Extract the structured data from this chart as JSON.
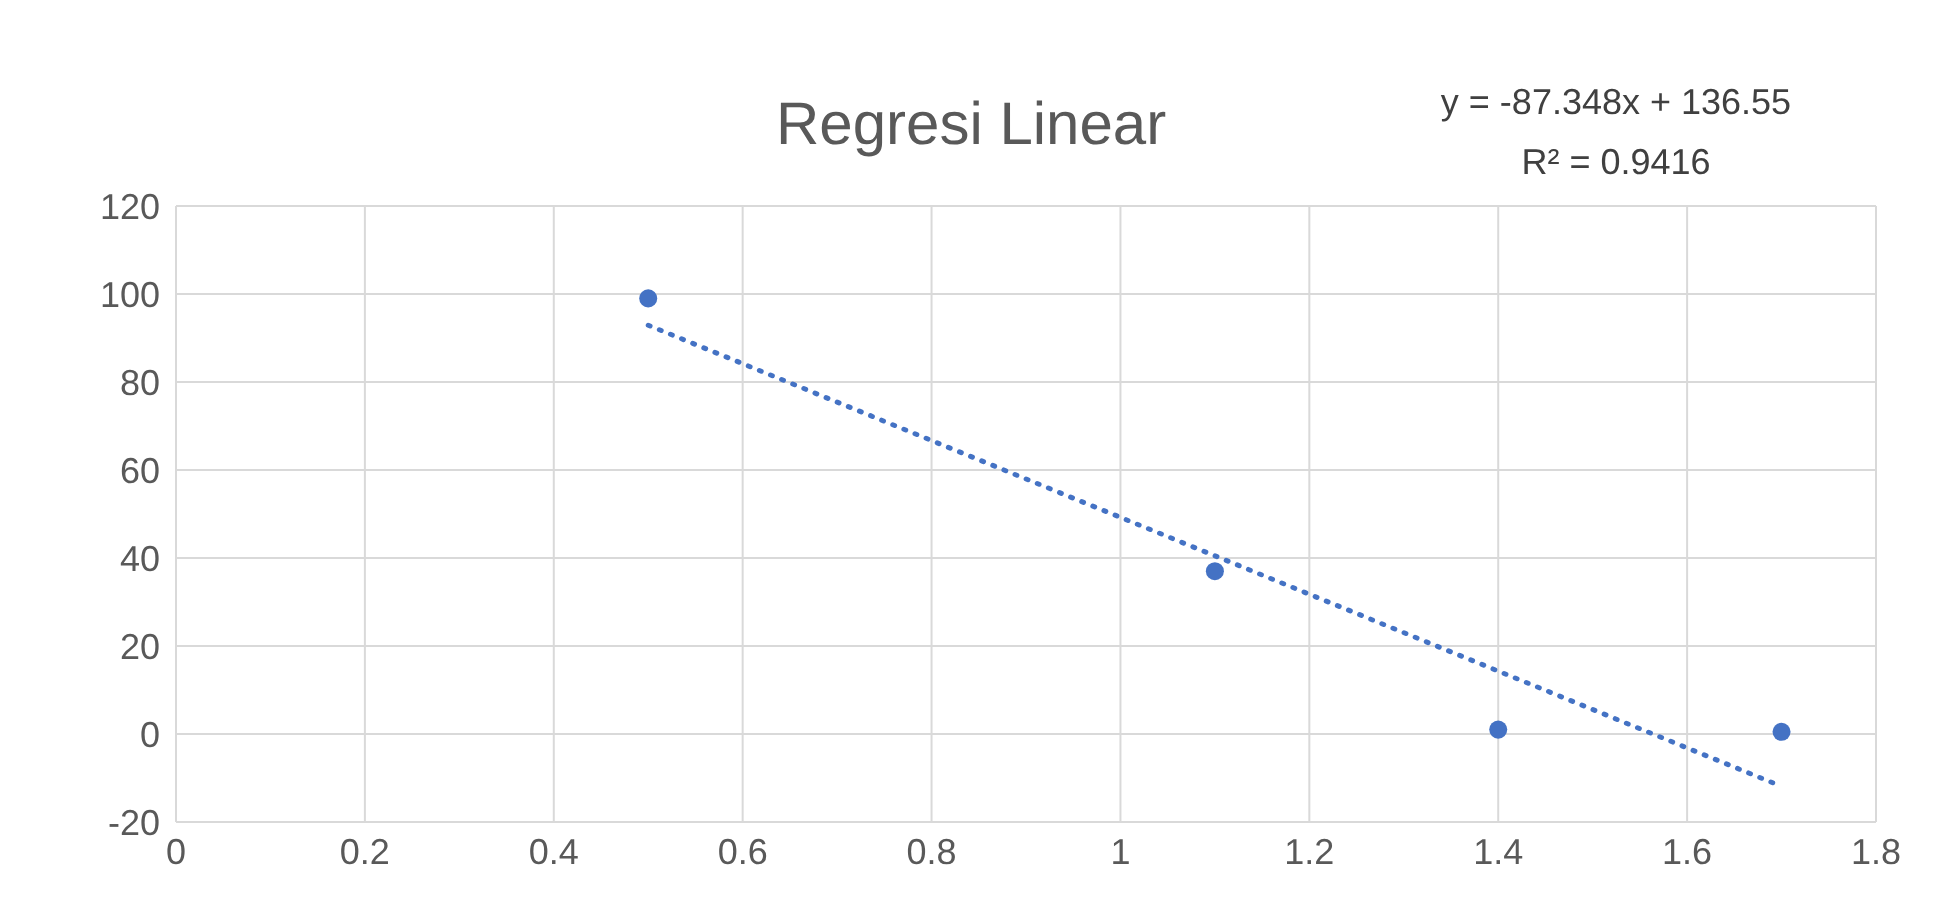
{
  "chart_data": {
    "type": "scatter",
    "title": "Regresi Linear",
    "annotations": [
      "y = -87.348x + 136.55",
      "R² = 0.9416"
    ],
    "x": [
      0.5,
      1.1,
      1.4,
      1.7
    ],
    "series": [
      {
        "color": "#4472c4",
        "values": [
          99,
          37,
          1,
          0.5
        ],
        "marker": "circle"
      },
      {
        "type": "line",
        "color": "#4472c4",
        "x": [
          0.5,
          1.7
        ],
        "values": [
          92.9,
          -11.9
        ],
        "marker": "none",
        "line_style": "dotted"
      }
    ],
    "xlim": [
      0,
      1.8
    ],
    "xticks": [
      0,
      0.2,
      0.4,
      0.6,
      0.8,
      1,
      1.2,
      1.4,
      1.6,
      1.8
    ],
    "ylim": [
      -20,
      120
    ],
    "yticks": [
      -20,
      0,
      20,
      40,
      60,
      80,
      100,
      120
    ],
    "grid": true
  }
}
